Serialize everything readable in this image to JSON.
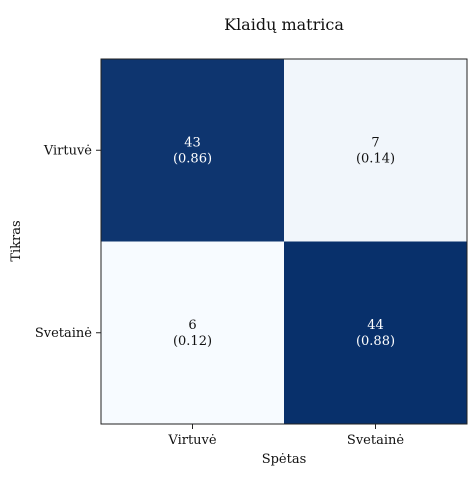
{
  "chart_data": {
    "type": "heatmap",
    "title": "Klaidų matrica",
    "xlabel": "Spėtas",
    "ylabel": "Tikras",
    "x_categories": [
      "Virtuvė",
      "Svetainė"
    ],
    "y_categories": [
      "Virtuvė",
      "Svetainė"
    ],
    "values": [
      [
        43,
        7
      ],
      [
        6,
        44
      ]
    ],
    "cell_labels": [
      [
        "43",
        "(0.86)",
        "7",
        "(0.14)"
      ],
      [
        "6",
        "(0.12)",
        "44",
        "(0.88)"
      ]
    ],
    "grid": false,
    "colormap": "Blues",
    "colors": {
      "high": "#08306b",
      "low": "#f7fbff",
      "text_on_dark": "#ffffff",
      "text_on_light": "#111111"
    }
  }
}
